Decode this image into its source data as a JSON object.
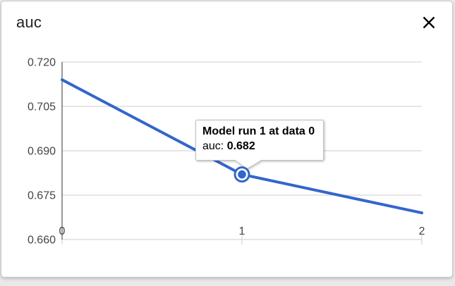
{
  "window": {
    "title": "auc",
    "close_icon": "×"
  },
  "tooltip": {
    "title": "Model run 1 at data 0",
    "series_label": "auc:",
    "value": "0.682"
  },
  "colors": {
    "page_bg": "#e9e9e9",
    "card_bg": "#ffffff",
    "card_border": "#c9c9c9",
    "title_text": "#212121",
    "line": "#3366cc",
    "grid": "#cccccc",
    "axis": "#333333",
    "axis_label": "#444444",
    "tooltip_border": "#c2c2c2",
    "tooltip_text": "#000000"
  },
  "chart_data": {
    "type": "line",
    "title": "auc",
    "x": [
      0,
      1,
      2
    ],
    "series": [
      {
        "name": "auc",
        "values": [
          0.714,
          0.682,
          0.669
        ],
        "color": "#3366cc"
      }
    ],
    "selected_point": {
      "x": 1,
      "y": 0.682
    },
    "xlim": [
      0,
      2
    ],
    "ylim": [
      0.66,
      0.72
    ],
    "xticks": [
      0,
      1,
      2
    ],
    "yticks": [
      0.66,
      0.675,
      0.69,
      0.705,
      0.72
    ],
    "ytick_decimals": 3,
    "xlabel": "",
    "ylabel": "",
    "grid": "horizontal",
    "legend": "none"
  }
}
